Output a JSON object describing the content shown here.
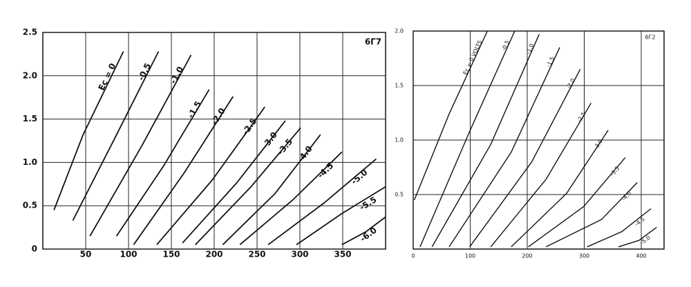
{
  "chart_data": [
    {
      "type": "line",
      "title": "6Г7",
      "color": "#111111",
      "grid": true,
      "xlim": [
        0,
        400
      ],
      "ylim": [
        0,
        2.5
      ],
      "xticks": [
        50,
        100,
        150,
        200,
        250,
        300,
        350
      ],
      "yticks": [
        0,
        0.5,
        {
          "value": 1,
          "label": "1.0"
        },
        1.5,
        {
          "value": 2,
          "label": "2.0"
        },
        2.5
      ],
      "series": [
        {
          "name": "Ec = 0",
          "x": [
            13,
            47,
            94
          ],
          "values": [
            0.45,
            1.32,
            2.28
          ]
        },
        {
          "name": "-0.5",
          "x": [
            35,
            84,
            135
          ],
          "values": [
            0.33,
            1.28,
            2.28
          ]
        },
        {
          "name": "-1.0",
          "x": [
            55,
            116,
            173
          ],
          "values": [
            0.15,
            1.2,
            2.24
          ]
        },
        {
          "name": "-1.5",
          "x": [
            86,
            141,
            194
          ],
          "values": [
            0.15,
            0.96,
            1.84
          ]
        },
        {
          "name": "-2.0",
          "x": [
            106,
            165,
            222
          ],
          "values": [
            0.05,
            0.88,
            1.76
          ]
        },
        {
          "name": "-2.5",
          "x": [
            133,
            198,
            259
          ],
          "values": [
            0.05,
            0.8,
            1.64
          ]
        },
        {
          "name": "-3.0",
          "x": [
            163,
            226,
            283
          ],
          "values": [
            0.07,
            0.76,
            1.48
          ]
        },
        {
          "name": "-3.5",
          "x": [
            178,
            243,
            301
          ],
          "values": [
            0.05,
            0.72,
            1.4
          ]
        },
        {
          "name": "-4.0",
          "x": [
            210,
            271,
            324
          ],
          "values": [
            0.05,
            0.64,
            1.32
          ]
        },
        {
          "name": "-4.5",
          "x": [
            230,
            292,
            349
          ],
          "values": [
            0.05,
            0.57,
            1.12
          ]
        },
        {
          "name": "-5.0",
          "x": [
            263,
            328,
            389
          ],
          "values": [
            0.05,
            0.53,
            1.04
          ]
        },
        {
          "name": "-5.5",
          "x": [
            296,
            349,
            400
          ],
          "values": [
            0.05,
            0.41,
            0.72
          ]
        },
        {
          "name": "-6.0",
          "x": [
            349,
            377,
            400
          ],
          "values": [
            0.05,
            0.2,
            0.37
          ]
        }
      ]
    },
    {
      "type": "line",
      "title": "6Г2",
      "color": "#111111",
      "grid": true,
      "xlim": [
        0,
        440
      ],
      "ylim": [
        0,
        2
      ],
      "xticks": [
        0,
        100,
        200,
        300,
        400
      ],
      "yticks": [
        0.5,
        {
          "value": 1,
          "label": "1.0"
        },
        1.5,
        {
          "value": 2,
          "label": "2.0"
        }
      ],
      "series": [
        {
          "name": "Ec = 0 VOLTS",
          "x": [
            2,
            63,
            130
          ],
          "values": [
            0.45,
            1.24,
            2.0
          ]
        },
        {
          "name": "-0.5",
          "x": [
            12,
            99,
            178
          ],
          "values": [
            0.02,
            1.08,
            2.0
          ]
        },
        {
          "name": "-1.0",
          "x": [
            33,
            136,
            221
          ],
          "values": [
            0.02,
            0.96,
            1.97
          ]
        },
        {
          "name": "-1.5",
          "x": [
            63,
            172,
            257
          ],
          "values": [
            0.02,
            0.89,
            1.85
          ]
        },
        {
          "name": "-2.0",
          "x": [
            99,
            208,
            293
          ],
          "values": [
            0.02,
            0.8,
            1.65
          ]
        },
        {
          "name": "-2.5",
          "x": [
            136,
            233,
            312
          ],
          "values": [
            0.02,
            0.64,
            1.34
          ]
        },
        {
          "name": "-3.0",
          "x": [
            172,
            269,
            342
          ],
          "values": [
            0.02,
            0.51,
            1.09
          ]
        },
        {
          "name": "-3.5",
          "x": [
            202,
            299,
            372
          ],
          "values": [
            0.02,
            0.39,
            0.84
          ]
        },
        {
          "name": "-4.0",
          "x": [
            233,
            330,
            393
          ],
          "values": [
            0.02,
            0.27,
            0.61
          ]
        },
        {
          "name": "-4.5",
          "x": [
            305,
            366,
            417
          ],
          "values": [
            0.02,
            0.16,
            0.37
          ]
        },
        {
          "name": "-5.0",
          "x": [
            360,
            396,
            427
          ],
          "values": [
            0.02,
            0.08,
            0.2
          ]
        }
      ]
    }
  ]
}
